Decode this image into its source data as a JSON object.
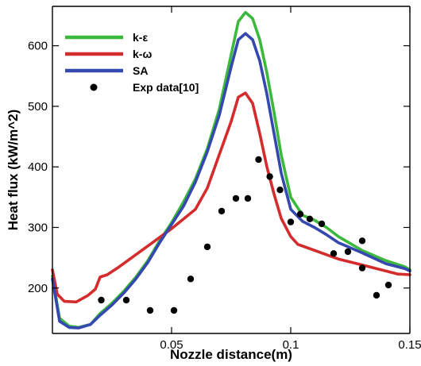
{
  "chart_data": {
    "type": "line",
    "xlabel": "Nozzle distance(m)",
    "ylabel": "Heat flux (kW/m^2)",
    "xlim": [
      0.0,
      0.15
    ],
    "ylim": [
      125,
      665
    ],
    "x_ticks": [
      {
        "value": 0.05,
        "label": "0.05"
      },
      {
        "value": 0.1,
        "label": "0.1"
      },
      {
        "value": 0.15,
        "label": "0.15"
      }
    ],
    "y_ticks": [
      {
        "value": 200,
        "label": "200"
      },
      {
        "value": 300,
        "label": "300"
      },
      {
        "value": 400,
        "label": "400"
      },
      {
        "value": 500,
        "label": "500"
      },
      {
        "value": 600,
        "label": "600"
      }
    ],
    "grid": false,
    "legend_position": "top-left",
    "series": [
      {
        "name": "k-ε",
        "style": "line",
        "color": "#3cb93c",
        "points": [
          [
            0.0,
            220
          ],
          [
            0.003,
            150
          ],
          [
            0.007,
            137
          ],
          [
            0.011,
            135
          ],
          [
            0.016,
            140
          ],
          [
            0.02,
            158
          ],
          [
            0.025,
            175
          ],
          [
            0.03,
            195
          ],
          [
            0.035,
            218
          ],
          [
            0.04,
            245
          ],
          [
            0.045,
            278
          ],
          [
            0.05,
            308
          ],
          [
            0.055,
            342
          ],
          [
            0.06,
            380
          ],
          [
            0.065,
            430
          ],
          [
            0.07,
            495
          ],
          [
            0.075,
            585
          ],
          [
            0.078,
            640
          ],
          [
            0.081,
            655
          ],
          [
            0.084,
            645
          ],
          [
            0.087,
            610
          ],
          [
            0.09,
            555
          ],
          [
            0.093,
            490
          ],
          [
            0.096,
            420
          ],
          [
            0.1,
            350
          ],
          [
            0.105,
            320
          ],
          [
            0.11,
            312
          ],
          [
            0.115,
            300
          ],
          [
            0.12,
            285
          ],
          [
            0.13,
            262
          ],
          [
            0.14,
            245
          ],
          [
            0.148,
            235
          ],
          [
            0.15,
            230
          ]
        ]
      },
      {
        "name": "k-ω",
        "style": "line",
        "color": "#d42c2c",
        "points": [
          [
            0.0,
            230
          ],
          [
            0.002,
            190
          ],
          [
            0.005,
            178
          ],
          [
            0.01,
            177
          ],
          [
            0.015,
            188
          ],
          [
            0.018,
            198
          ],
          [
            0.02,
            218
          ],
          [
            0.023,
            222
          ],
          [
            0.028,
            235
          ],
          [
            0.035,
            255
          ],
          [
            0.042,
            275
          ],
          [
            0.05,
            298
          ],
          [
            0.06,
            330
          ],
          [
            0.065,
            365
          ],
          [
            0.07,
            420
          ],
          [
            0.075,
            475
          ],
          [
            0.078,
            515
          ],
          [
            0.081,
            522
          ],
          [
            0.084,
            505
          ],
          [
            0.087,
            455
          ],
          [
            0.09,
            400
          ],
          [
            0.093,
            355
          ],
          [
            0.096,
            315
          ],
          [
            0.1,
            285
          ],
          [
            0.103,
            272
          ],
          [
            0.108,
            265
          ],
          [
            0.115,
            255
          ],
          [
            0.12,
            248
          ],
          [
            0.13,
            238
          ],
          [
            0.14,
            228
          ],
          [
            0.145,
            223
          ],
          [
            0.15,
            222
          ]
        ]
      },
      {
        "name": "SA",
        "style": "line",
        "color": "#3548b0",
        "points": [
          [
            0.0,
            215
          ],
          [
            0.003,
            145
          ],
          [
            0.007,
            135
          ],
          [
            0.011,
            134
          ],
          [
            0.016,
            140
          ],
          [
            0.02,
            155
          ],
          [
            0.025,
            172
          ],
          [
            0.03,
            192
          ],
          [
            0.035,
            215
          ],
          [
            0.04,
            242
          ],
          [
            0.045,
            275
          ],
          [
            0.05,
            305
          ],
          [
            0.055,
            335
          ],
          [
            0.06,
            375
          ],
          [
            0.065,
            425
          ],
          [
            0.07,
            485
          ],
          [
            0.075,
            565
          ],
          [
            0.078,
            610
          ],
          [
            0.081,
            620
          ],
          [
            0.084,
            610
          ],
          [
            0.087,
            575
          ],
          [
            0.09,
            520
          ],
          [
            0.093,
            455
          ],
          [
            0.096,
            390
          ],
          [
            0.1,
            330
          ],
          [
            0.105,
            310
          ],
          [
            0.11,
            300
          ],
          [
            0.115,
            288
          ],
          [
            0.12,
            275
          ],
          [
            0.13,
            258
          ],
          [
            0.14,
            240
          ],
          [
            0.148,
            232
          ],
          [
            0.15,
            228
          ]
        ]
      },
      {
        "name": "Exp data[10]",
        "style": "markers",
        "color": "#000000",
        "points": [
          [
            0.0205,
            180
          ],
          [
            0.031,
            180
          ],
          [
            0.041,
            163
          ],
          [
            0.051,
            163
          ],
          [
            0.058,
            215
          ],
          [
            0.065,
            268
          ],
          [
            0.071,
            327
          ],
          [
            0.077,
            348
          ],
          [
            0.082,
            348
          ],
          [
            0.0865,
            412
          ],
          [
            0.0912,
            384
          ],
          [
            0.0955,
            362
          ],
          [
            0.1,
            309
          ],
          [
            0.104,
            322
          ],
          [
            0.108,
            314
          ],
          [
            0.113,
            306
          ],
          [
            0.118,
            257
          ],
          [
            0.124,
            260
          ],
          [
            0.13,
            278
          ],
          [
            0.13,
            233
          ],
          [
            0.136,
            188
          ],
          [
            0.141,
            205
          ]
        ]
      }
    ]
  }
}
